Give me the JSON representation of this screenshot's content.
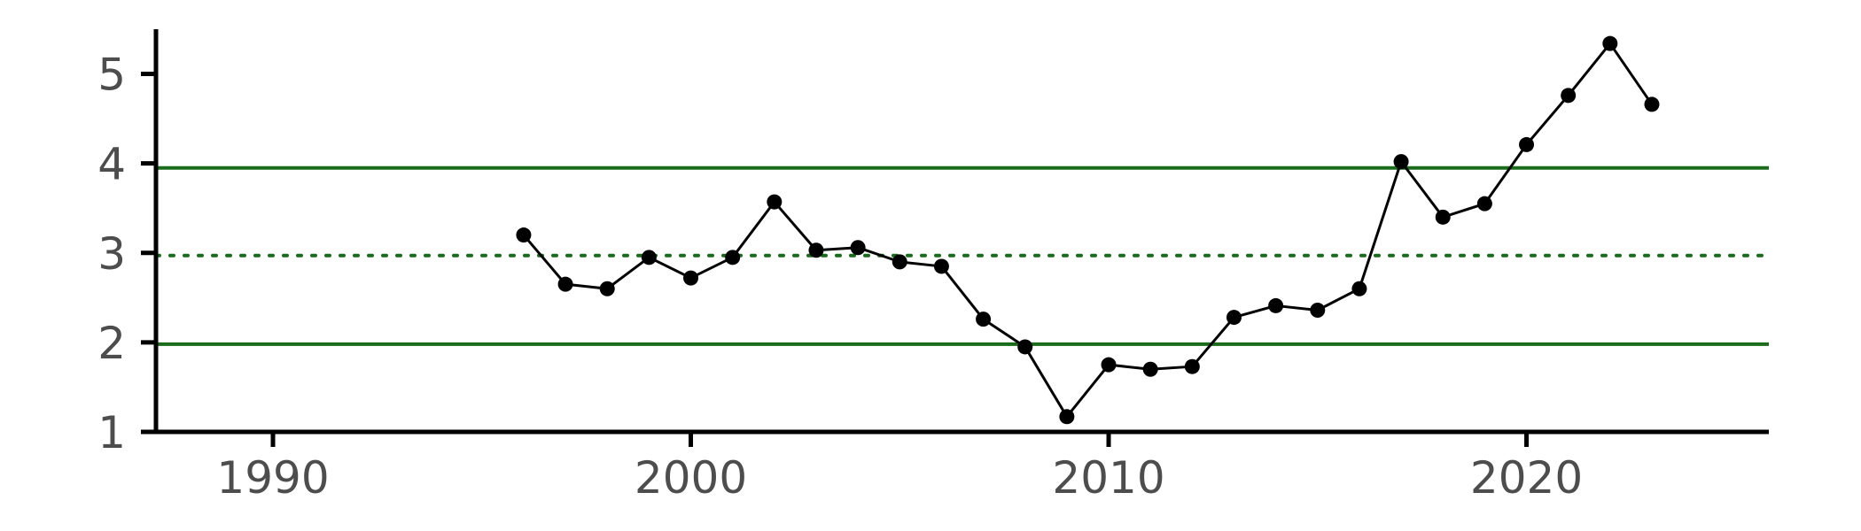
{
  "chart_data": {
    "type": "line",
    "title": "",
    "xlabel": "",
    "ylabel": "",
    "xlim": [
      1987.2,
      2025.8
    ],
    "ylim": [
      1,
      5.5
    ],
    "x_ticks": [
      1990,
      2000,
      2010,
      2020
    ],
    "y_ticks": [
      1,
      2,
      3,
      4,
      5
    ],
    "grid": false,
    "legend": "none",
    "series": [
      {
        "color": "#000000",
        "x": [
          1996,
          1997,
          1998,
          1999,
          2000,
          2001,
          2002,
          2003,
          2004,
          2005,
          2006,
          2007,
          2008,
          2009,
          2010,
          2011,
          2012,
          2013,
          2014,
          2015,
          2016,
          2017,
          2018,
          2019,
          2020,
          2021,
          2022,
          2023
        ],
        "y": [
          3.2,
          2.65,
          2.6,
          2.95,
          2.72,
          2.95,
          3.57,
          3.03,
          3.06,
          2.9,
          2.85,
          2.26,
          1.95,
          1.17,
          1.75,
          1.7,
          1.73,
          2.28,
          2.41,
          2.36,
          2.6,
          4.02,
          3.4,
          3.55,
          4.21,
          4.76,
          5.34,
          4.66
        ]
      }
    ],
    "reference_lines": [
      {
        "y": 3.95,
        "style": "solid",
        "color": "#1a6b1a"
      },
      {
        "y": 2.97,
        "style": "dotted",
        "color": "#1a6b1a"
      },
      {
        "y": 1.98,
        "style": "solid",
        "color": "#1a6b1a"
      }
    ]
  }
}
